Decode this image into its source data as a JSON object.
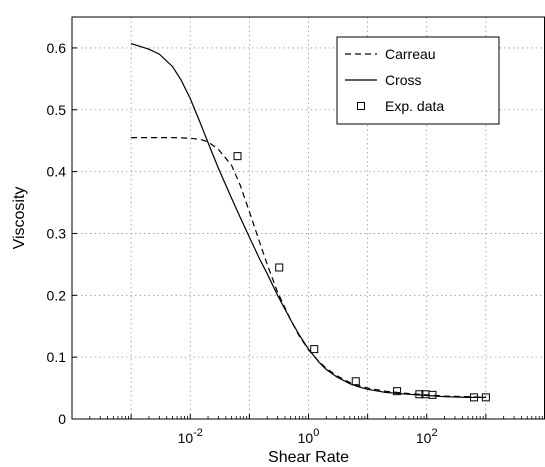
{
  "chart_data": {
    "type": "line",
    "xlabel": "Shear Rate",
    "ylabel": "Viscosity",
    "xscale": "log",
    "xlim": [
      0.0001,
      10000
    ],
    "ylim": [
      0,
      0.65
    ],
    "grid": true,
    "legend_position": "top-right",
    "x_ticks": [
      {
        "value": 0.01,
        "base": "10",
        "exp": "-2"
      },
      {
        "value": 1,
        "base": "10",
        "exp": "0"
      },
      {
        "value": 100,
        "base": "10",
        "exp": "2"
      }
    ],
    "y_ticks": [
      {
        "value": 0,
        "label": "0"
      },
      {
        "value": 0.1,
        "label": "0.1"
      },
      {
        "value": 0.2,
        "label": "0.2"
      },
      {
        "value": 0.3,
        "label": "0.3"
      },
      {
        "value": 0.4,
        "label": "0.4"
      },
      {
        "value": 0.5,
        "label": "0.5"
      },
      {
        "value": 0.6,
        "label": "0.6"
      }
    ],
    "series": [
      {
        "name": "Carreau",
        "style": "dashed",
        "color": "#000000",
        "x": [
          0.001,
          0.002,
          0.005,
          0.01,
          0.015,
          0.02,
          0.03,
          0.05,
          0.07,
          0.1,
          0.15,
          0.2,
          0.3,
          0.5,
          0.7,
          1,
          1.5,
          2,
          3,
          5,
          7,
          10,
          20,
          50,
          100,
          200,
          500,
          1000
        ],
        "y": [
          0.455,
          0.455,
          0.455,
          0.454,
          0.452,
          0.448,
          0.436,
          0.41,
          0.378,
          0.335,
          0.285,
          0.25,
          0.205,
          0.16,
          0.134,
          0.112,
          0.093,
          0.082,
          0.07,
          0.059,
          0.054,
          0.05,
          0.045,
          0.041,
          0.039,
          0.037,
          0.036,
          0.035
        ]
      },
      {
        "name": "Cross",
        "style": "solid",
        "color": "#000000",
        "x": [
          0.001,
          0.002,
          0.003,
          0.005,
          0.007,
          0.01,
          0.015,
          0.02,
          0.03,
          0.05,
          0.07,
          0.1,
          0.15,
          0.2,
          0.3,
          0.5,
          0.7,
          1,
          1.5,
          2,
          3,
          5,
          7,
          10,
          20,
          50,
          100,
          200,
          500,
          1000
        ],
        "y": [
          0.607,
          0.598,
          0.59,
          0.57,
          0.548,
          0.518,
          0.477,
          0.447,
          0.405,
          0.357,
          0.326,
          0.294,
          0.258,
          0.235,
          0.2,
          0.16,
          0.136,
          0.113,
          0.092,
          0.08,
          0.068,
          0.057,
          0.052,
          0.048,
          0.043,
          0.04,
          0.038,
          0.036,
          0.035,
          0.035
        ]
      },
      {
        "name": "Exp. data",
        "style": "markers",
        "marker": "square",
        "color": "#000000",
        "x": [
          0.063,
          0.32,
          1.25,
          6.3,
          31.5,
          75,
          95,
          125,
          630,
          1000
        ],
        "y": [
          0.425,
          0.245,
          0.113,
          0.061,
          0.045,
          0.04,
          0.04,
          0.039,
          0.035,
          0.035
        ]
      }
    ]
  }
}
